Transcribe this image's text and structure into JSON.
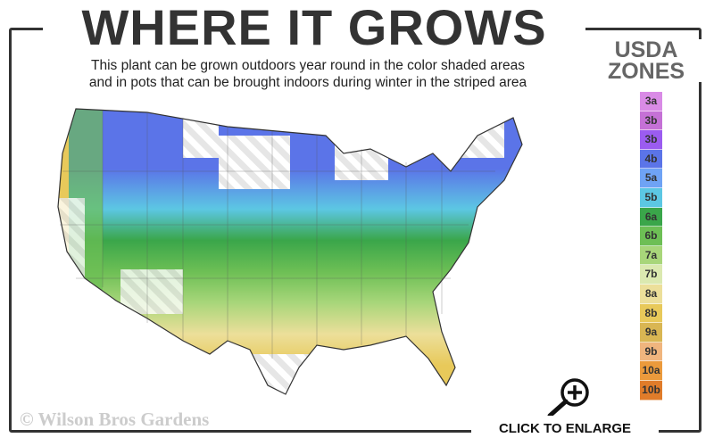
{
  "title": "WHERE IT GROWS",
  "subtitle_line1": "This plant can be grown outdoors year round in the color shaded areas",
  "subtitle_line2": "and in pots that can be brought indoors during winter in the striped area",
  "legend": {
    "title_line1": "USDA",
    "title_line2": "ZONES",
    "zones": [
      {
        "label": "3a",
        "color": "#d98be6"
      },
      {
        "label": "3b",
        "color": "#c571d6"
      },
      {
        "label": "3b",
        "color": "#9b5cf0"
      },
      {
        "label": "4b",
        "color": "#5b74e8"
      },
      {
        "label": "5a",
        "color": "#6fa3f5"
      },
      {
        "label": "5b",
        "color": "#5cc7e3"
      },
      {
        "label": "6a",
        "color": "#3aa64a"
      },
      {
        "label": "6b",
        "color": "#6dbf55"
      },
      {
        "label": "7a",
        "color": "#a8d67a"
      },
      {
        "label": "7b",
        "color": "#dbe9b0"
      },
      {
        "label": "8a",
        "color": "#ecdf9a"
      },
      {
        "label": "8b",
        "color": "#e8c95a"
      },
      {
        "label": "9a",
        "color": "#d9b653"
      },
      {
        "label": "9b",
        "color": "#f0b57e"
      },
      {
        "label": "10a",
        "color": "#eb9a3c"
      },
      {
        "label": "10b",
        "color": "#e07c2a"
      }
    ]
  },
  "map": {
    "region": "Contiguous United States",
    "shaded_zones": "5b-9a",
    "striped_area": "zones 3-4 and 9b+"
  },
  "copyright": "© Wilson Bros Gardens",
  "enlarge_label": "CLICK TO ENLARGE",
  "enlarge_icon": "magnifier-plus-icon"
}
